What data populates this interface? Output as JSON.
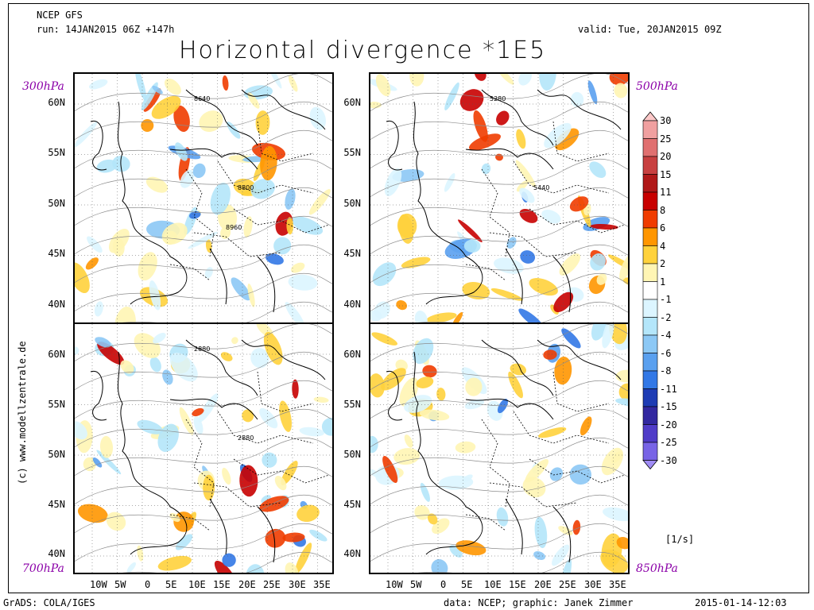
{
  "header": {
    "model": "NCEP GFS",
    "run": "run: 14JAN2015 06Z +147h",
    "valid": "valid: Tue, 20JAN2015 09Z",
    "title": "Horizontal divergence *1E5"
  },
  "panels": {
    "top_left": {
      "level": "300hPa",
      "contour_labels": [
        "8640",
        "8800",
        "8960"
      ]
    },
    "top_right": {
      "level": "500hPa",
      "contour_labels": [
        "5280",
        "5440"
      ]
    },
    "bottom_left": {
      "level": "700hPa",
      "contour_labels": [
        "2880",
        "2880"
      ]
    },
    "bottom_right": {
      "level": "850hPa",
      "contour_labels": []
    }
  },
  "axes": {
    "lat_top": [
      "60N",
      "55N",
      "50N",
      "45N",
      "40N"
    ],
    "lat_bottom": [
      "60N",
      "55N",
      "50N",
      "45N",
      "40N"
    ],
    "lon": [
      "10W",
      "5W",
      "0",
      "5E",
      "10E",
      "15E",
      "20E",
      "25E",
      "30E",
      "35E"
    ]
  },
  "colorbar": {
    "levels": [
      "30",
      "25",
      "20",
      "15",
      "11",
      "8",
      "6",
      "4",
      "2",
      "1",
      "-1",
      "-2",
      "-4",
      "-6",
      "-8",
      "-11",
      "-15",
      "-20",
      "-25",
      "-30"
    ],
    "colors": [
      "#fcc8c8",
      "#f0a0a0",
      "#e07070",
      "#c84040",
      "#b01818",
      "#c80000",
      "#f03c00",
      "#ff9600",
      "#ffd23c",
      "#fff5b4",
      "#ffffff",
      "#dcf5ff",
      "#b4e6fa",
      "#8cc8f5",
      "#5aa0ef",
      "#3278e6",
      "#1e3cb4",
      "#3228a0",
      "#503cc8",
      "#7864e6",
      "#a08cf5"
    ],
    "unit": "[1/s]"
  },
  "side_text": "(c) www.modellzentrale.de",
  "footer": {
    "left": "GrADS: COLA/IGES",
    "center": "data: NCEP; graphic: Janek Zimmer",
    "right": "2015-01-14-12:03"
  }
}
